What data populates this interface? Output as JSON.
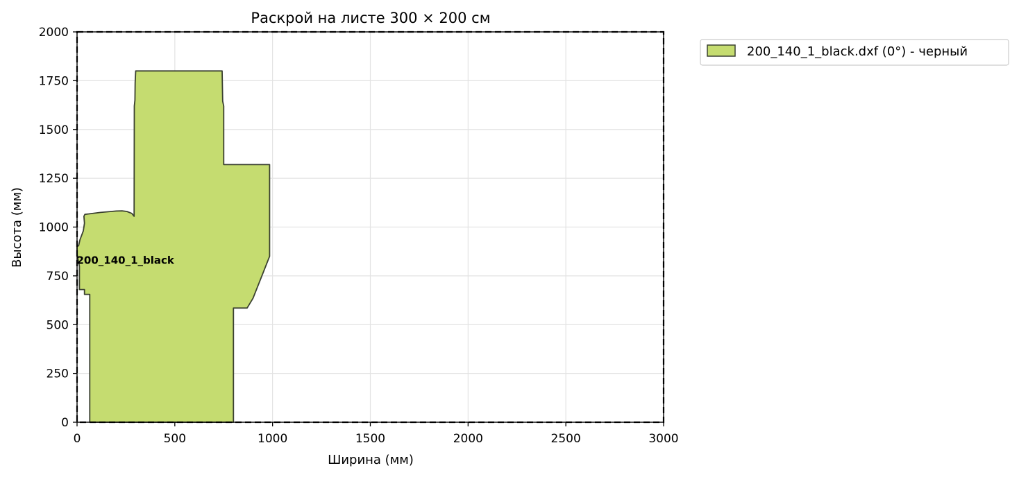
{
  "chart_data": {
    "type": "area",
    "title": "Раскрой на листе 300 × 200 см",
    "xlabel": "Ширина (мм)",
    "ylabel": "Высота (мм)",
    "xlim": [
      0,
      3000
    ],
    "ylim": [
      0,
      2000
    ],
    "xticks": [
      0,
      500,
      1000,
      1500,
      2000,
      2500,
      3000
    ],
    "yticks": [
      0,
      250,
      500,
      750,
      1000,
      1250,
      1500,
      1750,
      2000
    ],
    "grid": true,
    "legend_position": "outside-top-right",
    "sheet": {
      "width": 3000,
      "height": 2000,
      "border_style": "dashed"
    },
    "pieces": [
      {
        "name": "200_140_1_black",
        "legend": "200_140_1_black.dxf (0°) - черный",
        "color": "#c5dc70",
        "edge_color": "#3a4030",
        "label_at": [
          495,
          830
        ],
        "polygon": [
          [
            65,
            0
          ],
          [
            800,
            0
          ],
          [
            800,
            585
          ],
          [
            870,
            585
          ],
          [
            900,
            635
          ],
          [
            985,
            850
          ],
          [
            985,
            1320
          ],
          [
            750,
            1320
          ],
          [
            750,
            1620
          ],
          [
            745,
            1645
          ],
          [
            742,
            1800
          ],
          [
            300,
            1800
          ],
          [
            297,
            1740
          ],
          [
            296,
            1650
          ],
          [
            293,
            1620
          ],
          [
            292,
            1055
          ],
          [
            280,
            1070
          ],
          [
            255,
            1080
          ],
          [
            230,
            1083
          ],
          [
            200,
            1082
          ],
          [
            120,
            1075
          ],
          [
            40,
            1065
          ],
          [
            35,
            1055
          ],
          [
            38,
            1020
          ],
          [
            32,
            980
          ],
          [
            15,
            935
          ],
          [
            8,
            905
          ],
          [
            0,
            900
          ],
          [
            0,
            860
          ],
          [
            12,
            800
          ],
          [
            12,
            680
          ],
          [
            38,
            680
          ],
          [
            38,
            655
          ],
          [
            65,
            655
          ]
        ]
      }
    ]
  }
}
